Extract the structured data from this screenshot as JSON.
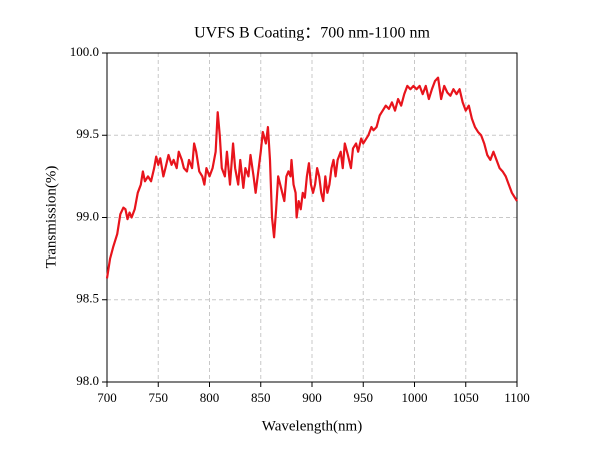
{
  "chart_data": {
    "type": "line",
    "title": "UVFS B Coating：700 nm-1100 nm",
    "x_label": "Wavelength(nm)",
    "y_label": "Transmission(%)",
    "color": "#e8141c",
    "grid": true,
    "xlim": [
      700,
      1100
    ],
    "ylim": [
      98,
      100
    ],
    "xticks": [
      700,
      750,
      800,
      850,
      900,
      950,
      1000,
      1050,
      1100
    ],
    "yticks": [
      {
        "value": 98,
        "label": "98.0"
      },
      {
        "value": 98.5,
        "label": "98.5"
      },
      {
        "value": 99,
        "label": "99.0"
      },
      {
        "value": 99.5,
        "label": "99.5"
      },
      {
        "value": 100,
        "label": "100.0"
      }
    ],
    "x": [
      700,
      703,
      706,
      710,
      713,
      716,
      718,
      720,
      722,
      724,
      727,
      730,
      733,
      735,
      737,
      740,
      743,
      746,
      748,
      750,
      752,
      755,
      757,
      760,
      763,
      765,
      768,
      770,
      773,
      775,
      778,
      780,
      783,
      785,
      787,
      790,
      793,
      795,
      797,
      800,
      803,
      806,
      808,
      810,
      812,
      815,
      817,
      820,
      823,
      825,
      828,
      830,
      833,
      835,
      838,
      840,
      843,
      845,
      848,
      850,
      852,
      855,
      857,
      859,
      861,
      863,
      865,
      867,
      869,
      871,
      873,
      875,
      877,
      879,
      880,
      882,
      884,
      885,
      887,
      889,
      891,
      893,
      895,
      897,
      899,
      901,
      903,
      905,
      907,
      909,
      911,
      913,
      915,
      917,
      919,
      921,
      923,
      925,
      928,
      930,
      932,
      935,
      938,
      940,
      943,
      945,
      948,
      950,
      953,
      955,
      958,
      960,
      963,
      966,
      969,
      972,
      975,
      978,
      981,
      984,
      987,
      990,
      993,
      996,
      999,
      1002,
      1005,
      1008,
      1011,
      1014,
      1017,
      1020,
      1023,
      1026,
      1029,
      1032,
      1035,
      1038,
      1041,
      1044,
      1047,
      1050,
      1053,
      1056,
      1059,
      1062,
      1065,
      1068,
      1071,
      1074,
      1077,
      1080,
      1083,
      1086,
      1089,
      1092,
      1095,
      1098,
      1100
    ],
    "values": [
      98.63,
      98.75,
      98.82,
      98.9,
      99.02,
      99.06,
      99.05,
      98.99,
      99.03,
      99.0,
      99.05,
      99.15,
      99.2,
      99.28,
      99.22,
      99.25,
      99.22,
      99.3,
      99.37,
      99.32,
      99.36,
      99.25,
      99.3,
      99.38,
      99.32,
      99.35,
      99.3,
      99.4,
      99.35,
      99.3,
      99.28,
      99.35,
      99.3,
      99.45,
      99.4,
      99.28,
      99.25,
      99.2,
      99.3,
      99.25,
      99.3,
      99.4,
      99.64,
      99.5,
      99.3,
      99.25,
      99.4,
      99.2,
      99.45,
      99.3,
      99.2,
      99.35,
      99.18,
      99.3,
      99.25,
      99.38,
      99.25,
      99.15,
      99.3,
      99.4,
      99.52,
      99.45,
      99.55,
      99.35,
      99.0,
      98.88,
      99.05,
      99.25,
      99.2,
      99.15,
      99.1,
      99.25,
      99.28,
      99.25,
      99.35,
      99.2,
      99.15,
      99.0,
      99.1,
      99.05,
      99.15,
      99.12,
      99.25,
      99.33,
      99.2,
      99.15,
      99.2,
      99.3,
      99.25,
      99.15,
      99.1,
      99.25,
      99.15,
      99.2,
      99.3,
      99.35,
      99.25,
      99.35,
      99.4,
      99.3,
      99.45,
      99.38,
      99.3,
      99.42,
      99.45,
      99.4,
      99.48,
      99.45,
      99.48,
      99.5,
      99.55,
      99.53,
      99.55,
      99.62,
      99.65,
      99.68,
      99.66,
      99.7,
      99.65,
      99.72,
      99.68,
      99.75,
      99.8,
      99.78,
      99.8,
      99.78,
      99.8,
      99.75,
      99.8,
      99.72,
      99.78,
      99.83,
      99.85,
      99.72,
      99.8,
      99.76,
      99.74,
      99.78,
      99.75,
      99.78,
      99.7,
      99.65,
      99.68,
      99.6,
      99.55,
      99.52,
      99.5,
      99.45,
      99.38,
      99.35,
      99.4,
      99.35,
      99.3,
      99.28,
      99.25,
      99.2,
      99.15,
      99.12,
      99.1
    ]
  }
}
